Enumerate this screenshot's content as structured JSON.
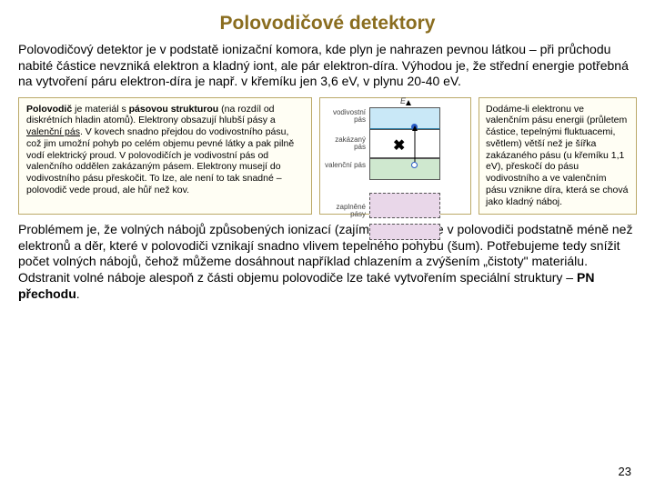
{
  "title": "Polovodičové detektory",
  "intro": "Polovodičový detektor je v podstatě ionizační komora, kde plyn je nahrazen pevnou látkou – při průchodu nabité částice nevzniká elektron a kladný iont, ale pár elektron-díra. Výhodou je, že střední energie potřebná na vytvoření páru elektron-díra je např. v křemíku jen 3,6 eV, v plynu 20-40 eV.",
  "leftbox_html": "<b>Polovodič</b> je materiál s <b>pásovou strukturou</b> (na rozdíl od diskrétních hladin atomů). Elektrony obsazují hlubší pásy a <u>valenční pás</u>. V kovech snadno přejdou do vodivostního pásu, což jim umožní pohyb po celém objemu pevné látky a pak pilně vodí elektrický proud. V polovodičích je vodivostní pás od valenčního oddělen zakázaným pásem. Elektrony musejí do vodivostního pásu přeskočit. To lze, ale není to tak snadné – polovodič vede proud, ale hůř než kov.",
  "rightbox": "Dodáme-li elektronu ve valenčním pásu energii (průletem částice, tepelnými fluktuacemi, světlem) větší než je šířka zakázaného pásu (u křemíku 1,1 eV), přeskočí do pásu vodivostního a ve valenčním pásu vznikne díra, která se chová jako kladný náboj.",
  "footer_html": "Problémem je, že volných nábojů způsobených ionizací (zajímavý signál) je v polovodiči podstatně méně než elektronů a děr, které v polovodiči vznikají snadno vlivem tepelného pohybu (šum). Potřebujeme tedy snížit počet volných nábojů, čehož můžeme dosáhnout například chlazením a zvýšením „čistoty\" materiálu. Odstranit volné náboje alespoň z části objemu polovodiče lze také vytvořením speciální struktury – <b>PN přechodu</b>.",
  "page_number": "23",
  "diagram": {
    "energy_letter": "E",
    "labels": {
      "cond": "vodivostní pás",
      "forbid": "zakázaný pás",
      "valence": "valenční pás",
      "filled": "zaplněné pásy"
    },
    "colors": {
      "cond": "#c9e8f7",
      "forbid": "#ffffff",
      "valence": "#cfe8cf",
      "filled": "#e9d7e9",
      "border": "#bba968"
    }
  }
}
